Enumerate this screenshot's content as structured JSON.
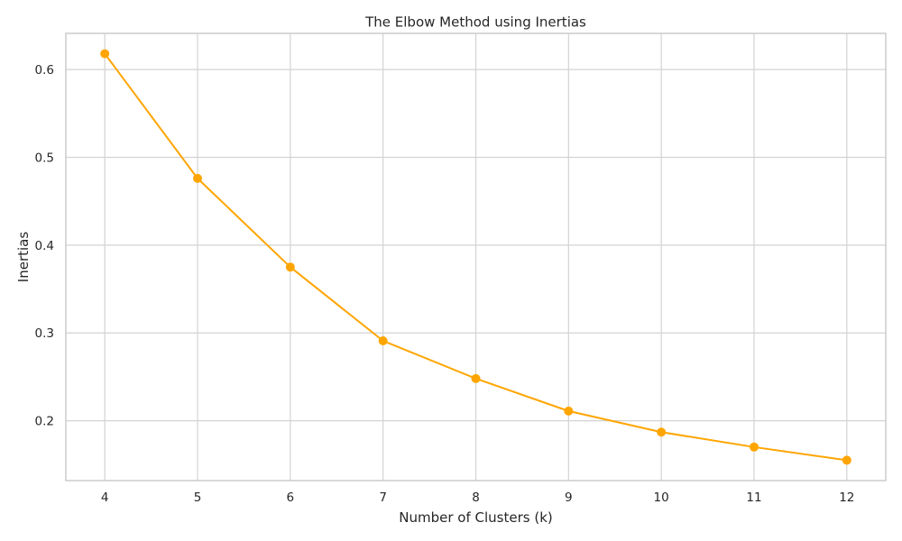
{
  "chart_data": {
    "type": "line",
    "title": "The Elbow Method using Inertias",
    "xlabel": "Number of Clusters (k)",
    "ylabel": "Inertias",
    "x": [
      4,
      5,
      6,
      7,
      8,
      9,
      10,
      11,
      12
    ],
    "series": [
      {
        "values": [
          0.618,
          0.476,
          0.375,
          0.291,
          0.248,
          0.211,
          0.187,
          0.17,
          0.155
        ],
        "color": "#ffa500",
        "marker": "circle"
      }
    ],
    "xticks": [
      "4",
      "5",
      "6",
      "7",
      "8",
      "9",
      "10",
      "11",
      "12"
    ],
    "yticks": [
      0.2,
      0.3,
      0.4,
      0.5,
      0.6
    ],
    "ytick_labels": [
      "0.2",
      "0.3",
      "0.4",
      "0.5",
      "0.6"
    ],
    "xlim": [
      3.58,
      12.42
    ],
    "ylim": [
      0.1318,
      0.6412
    ],
    "grid": true
  }
}
